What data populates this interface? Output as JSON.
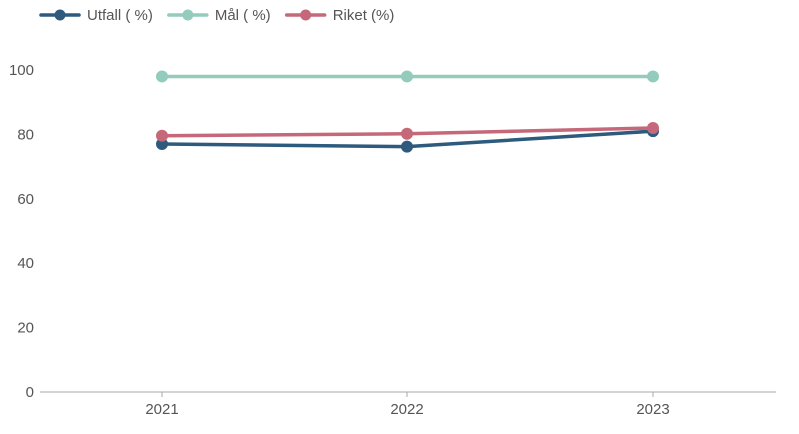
{
  "chart_data": {
    "type": "line",
    "categories": [
      "2021",
      "2022",
      "2023"
    ],
    "series": [
      {
        "name": "Utfall ( %)",
        "color": "#2e5a7e",
        "values": [
          77,
          76.2,
          81
        ]
      },
      {
        "name": "Mål ( %)",
        "color": "#93cbbd",
        "values": [
          98,
          98,
          98
        ]
      },
      {
        "name": "Riket (%)",
        "color": "#c5697a",
        "values": [
          79.6,
          80.2,
          82
        ]
      }
    ],
    "yticks": [
      "0",
      "20",
      "40",
      "60",
      "80",
      "100"
    ],
    "ylim": [
      0,
      100
    ],
    "legend_position": "top-left",
    "grid": false,
    "axis_color": "#aaaaaa",
    "tick_color": "#555555"
  }
}
